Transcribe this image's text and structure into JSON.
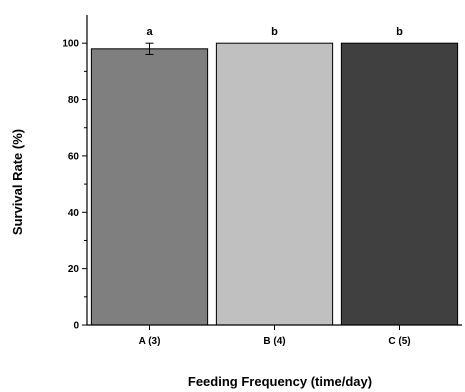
{
  "chart_data": {
    "type": "bar",
    "categories": [
      "A (3)",
      "B (4)",
      "C (5)"
    ],
    "values": [
      98,
      100,
      100
    ],
    "error": [
      2,
      0,
      0
    ],
    "significance_labels": [
      "a",
      "b",
      "b"
    ],
    "colors": [
      "#7f7f7f",
      "#c0c0c0",
      "#404040"
    ],
    "xlabel": "Feeding Frequency (time/day)",
    "ylabel": "Survival Rate (%)",
    "ylim": [
      0,
      110
    ],
    "yticks": [
      0,
      20,
      40,
      60,
      80,
      100
    ],
    "grid": false,
    "legend": false
  }
}
